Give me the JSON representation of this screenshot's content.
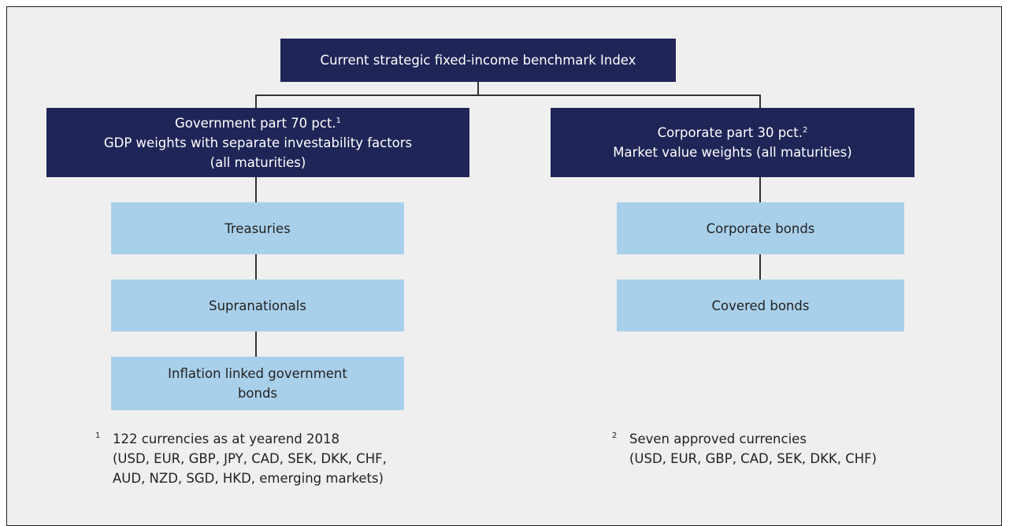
{
  "title": "Current strategic fixed-income benchmark Index",
  "branches": [
    {
      "header": {
        "lines": [
          "Government part 70 pct.",
          "GDP weights with separate investability factors",
          "(all maturities)"
        ],
        "note": "1"
      },
      "items": [
        [
          "Treasuries"
        ],
        [
          "Supranationals"
        ],
        [
          "Inflation linked government",
          "bonds"
        ]
      ],
      "footnote": {
        "marker": "1",
        "lines": [
          "122 currencies as at yearend 2018",
          "(USD, EUR, GBP, JPY, CAD, SEK, DKK, CHF,",
          "AUD, NZD, SGD, HKD, emerging markets)"
        ]
      }
    },
    {
      "header": {
        "lines": [
          "Corporate part 30 pct.",
          "Market value weights (all maturities)"
        ],
        "note": "2"
      },
      "items": [
        [
          "Corporate bonds"
        ],
        [
          "Covered bonds"
        ]
      ],
      "footnote": {
        "marker": "2",
        "lines": [
          "Seven approved currencies",
          "(USD, EUR, GBP, CAD, SEK, DKK, CHF)"
        ]
      }
    }
  ]
}
